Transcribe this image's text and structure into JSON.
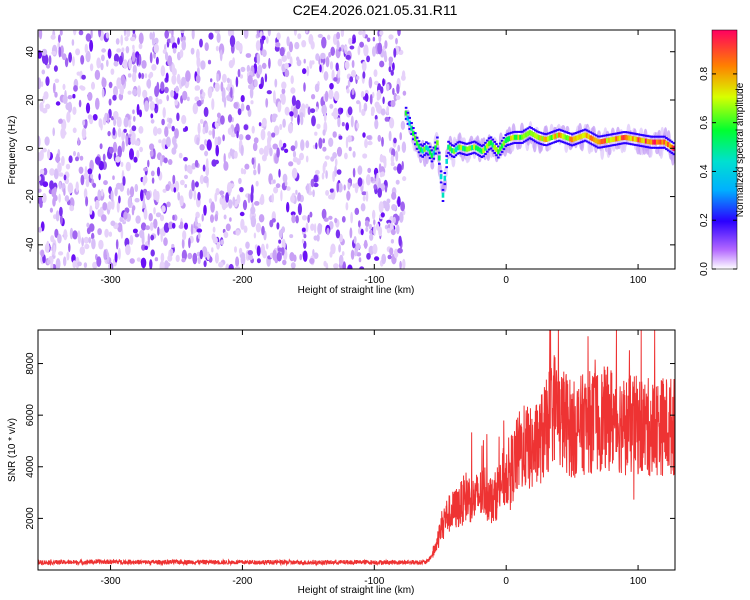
{
  "title": "C2E4.2026.021.05.31.R11",
  "chart_data": [
    {
      "type": "heatmap",
      "xlabel": "Height of straight line (km)",
      "ylabel": "Frequency (Hz)",
      "xlim": [
        -355,
        128
      ],
      "ylim": [
        -50,
        49
      ],
      "xticks": [
        "-300",
        "-200",
        "-100",
        "0",
        "100"
      ],
      "yticks": [
        "40",
        "20",
        "0",
        "-20",
        "-40"
      ],
      "colorbar": {
        "label": "Normalized spectral amplitude",
        "range": [
          0,
          0.98
        ],
        "ticks": [
          "0.0",
          "0.2",
          "0.4",
          "0.6",
          "0.8"
        ]
      },
      "noise_region_x": [
        -355,
        -77
      ],
      "ridge": {
        "x": [
          -76,
          -72,
          -68,
          -64,
          -60,
          -56,
          -52,
          -48,
          -44,
          -40,
          -36,
          -30,
          -24,
          -18,
          -12,
          -6,
          0,
          6,
          12,
          18,
          24,
          30,
          40,
          50,
          60,
          70,
          80,
          90,
          100,
          110,
          120,
          128
        ],
        "frequency": [
          14,
          8,
          2,
          -2,
          0,
          -4,
          2,
          -20,
          0,
          -2,
          0,
          -1,
          0,
          -2,
          2,
          -2,
          3,
          4,
          4,
          6,
          4,
          3,
          5,
          3,
          5,
          2,
          3,
          4,
          3,
          2,
          2,
          -1
        ]
      }
    },
    {
      "type": "line",
      "xlabel": "Height of straight line (km)",
      "ylabel": "SNR (10 * v/v)",
      "xlim": [
        -355,
        128
      ],
      "ylim": [
        0,
        9300
      ],
      "xticks": [
        "-300",
        "-200",
        "-100",
        "0",
        "100"
      ],
      "yticks": [
        "8000",
        "6000",
        "4000",
        "2000"
      ],
      "color": "#ee3333",
      "series": [
        {
          "x": [
            -355,
            -330,
            -300,
            -270,
            -240,
            -210,
            -180,
            -150,
            -120,
            -90,
            -70,
            -60,
            -56,
            -52,
            -50,
            -48,
            -45,
            -40,
            -35,
            -30,
            -25,
            -20,
            -15,
            -10,
            -5,
            0,
            5,
            10,
            15,
            20,
            25,
            30,
            35,
            38,
            40,
            45,
            50,
            60,
            70,
            80,
            90,
            100,
            110,
            120,
            128
          ],
          "values": [
            300,
            300,
            320,
            300,
            310,
            300,
            300,
            290,
            300,
            300,
            300,
            300,
            600,
            1100,
            1500,
            1900,
            2100,
            2300,
            2500,
            2900,
            2700,
            2900,
            3100,
            2600,
            3300,
            3700,
            4000,
            4600,
            4800,
            4600,
            5000,
            5400,
            6200,
            6500,
            5800,
            5800,
            5400,
            5700,
            5800,
            5900,
            5600,
            5600,
            5500,
            5600,
            5550
          ]
        }
      ]
    }
  ]
}
